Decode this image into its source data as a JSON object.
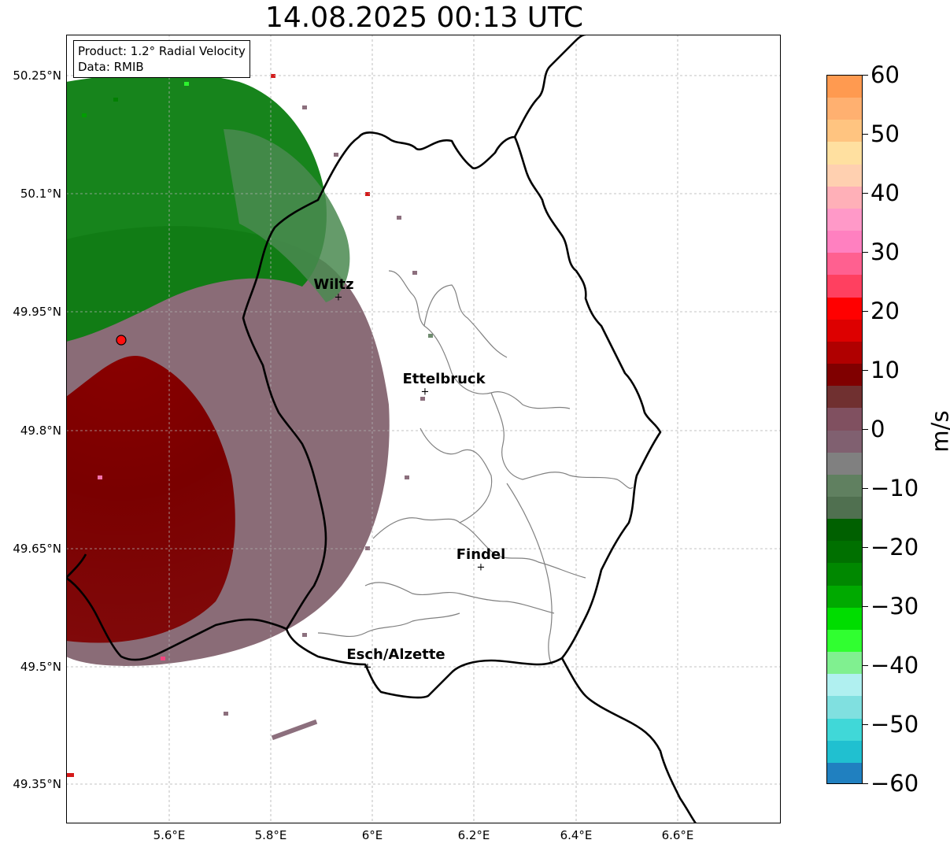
{
  "title": "14.08.2025 00:13 UTC",
  "info": {
    "product": "Product: 1.2° Radial Velocity",
    "source": "Data: RMIB"
  },
  "lat_labels": [
    "50.25°N",
    "50.1°N",
    "49.95°N",
    "49.8°N",
    "49.65°N",
    "49.5°N",
    "49.35°N"
  ],
  "lon_labels": [
    "5.6°E",
    "5.8°E",
    "6°E",
    "6.2°E",
    "6.4°E",
    "6.6°E"
  ],
  "cities": [
    {
      "name": "Wiltz"
    },
    {
      "name": "Ettelbruck"
    },
    {
      "name": "Findel"
    },
    {
      "name": "Esch/Alzette"
    }
  ],
  "colorbar": {
    "unit": "m/s",
    "min": -60,
    "max": 60,
    "ticks": [
      "60",
      "50",
      "40",
      "30",
      "20",
      "10",
      "0",
      "−10",
      "−20",
      "−30",
      "−40",
      "−50",
      "−60"
    ],
    "colors_top_to_bottom": [
      "#ff9a50",
      "#ffb070",
      "#ffc480",
      "#ffe0a0",
      "#ffd0b0",
      "#ffb0b8",
      "#ff99c8",
      "#ff80c0",
      "#ff6090",
      "#ff4060",
      "#ff0000",
      "#dd0000",
      "#b00000",
      "#800000",
      "#703030",
      "#805060",
      "#806070",
      "#808080",
      "#608060",
      "#507050",
      "#006000",
      "#007000",
      "#008800",
      "#00aa00",
      "#00dd00",
      "#30ff30",
      "#80f090",
      "#b0f0f0",
      "#80e0e0",
      "#40d8d8",
      "#20c0d0",
      "#2080c0"
    ]
  },
  "radar_site": {
    "marker": "red-circle"
  }
}
